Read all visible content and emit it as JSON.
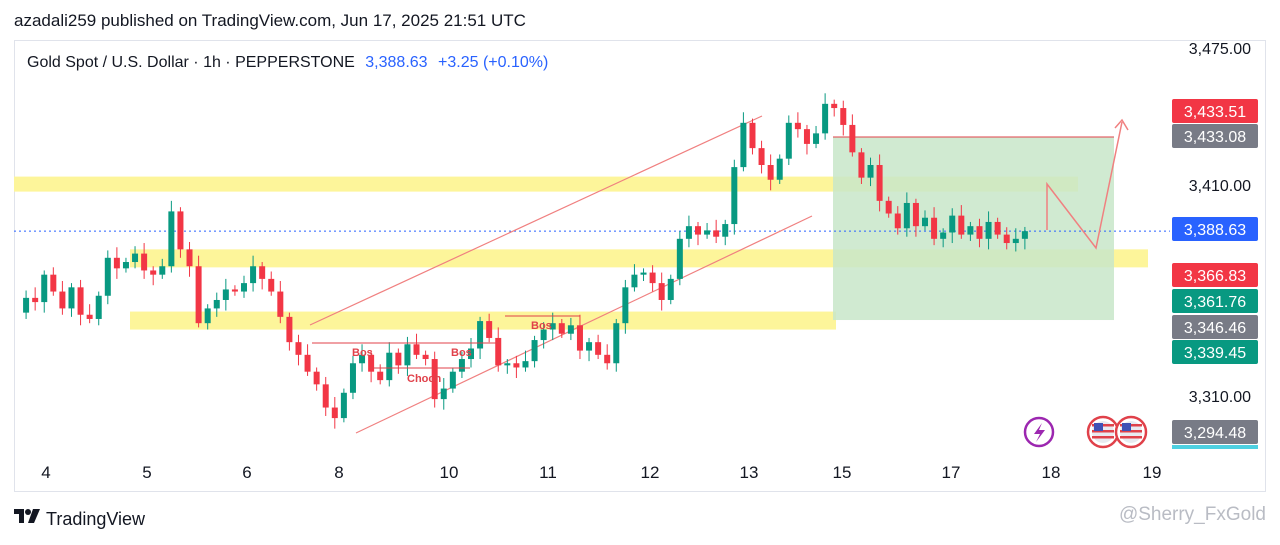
{
  "byline": "azadali259 published on TradingView.com, Jun 17, 2025 21:51 UTC",
  "legend": {
    "symbol": "Gold Spot / U.S. Dollar · 1h · PEPPERSTONE",
    "price": "3,388.63",
    "change": "+3.25 (+0.10%)"
  },
  "footer": {
    "brand": "TradingView",
    "watermark": "@Sherry_FxGold"
  },
  "colors": {
    "up": "#089981",
    "down": "#f23645",
    "zone": "#fdf59a",
    "target": "#c8e6c9",
    "trend": "#f08080",
    "current": "#2962ff"
  },
  "icons": [
    "tradingview-logo-icon",
    "lightning-icon",
    "us-flag-icon"
  ],
  "chart_data": {
    "type": "candlestick",
    "title": "Gold Spot / U.S. Dollar · 1h · PEPPERSTONE",
    "ylim": [
      3285,
      3480
    ],
    "y_ticks": [
      "3,475.00",
      "3,410.00",
      "3,310.00"
    ],
    "x_ticks": [
      "4",
      "5",
      "6",
      "8",
      "10",
      "11",
      "12",
      "13",
      "15",
      "17",
      "18",
      "19"
    ],
    "price_tags": [
      {
        "value": 3433.51,
        "text": "3,433.51",
        "color": "#f23645"
      },
      {
        "value": 3433.08,
        "text": "3,433.08",
        "color": "#787b86"
      },
      {
        "value": 3388.63,
        "text": "3,388.63",
        "color": "#2962ff"
      },
      {
        "value": 3366.83,
        "text": "3,366.83",
        "color": "#f23645"
      },
      {
        "value": 3361.76,
        "text": "3,361.76",
        "color": "#089981"
      },
      {
        "value": 3346.46,
        "text": "3,346.46",
        "color": "#787b86"
      },
      {
        "value": 3339.45,
        "text": "3,339.45",
        "color": "#089981"
      },
      {
        "value": 3294.48,
        "text": "3,294.48",
        "color": "#787b86"
      }
    ],
    "annotations": [
      "Bos",
      "Bos",
      "Choch",
      "Bos"
    ],
    "close_path": [
      [
        0,
        3350
      ],
      [
        1,
        3357
      ],
      [
        2,
        3355
      ],
      [
        3,
        3368
      ],
      [
        4,
        3360
      ],
      [
        5,
        3352
      ],
      [
        6,
        3362
      ],
      [
        7,
        3349
      ],
      [
        8,
        3347
      ],
      [
        9,
        3358
      ],
      [
        10,
        3376
      ],
      [
        11,
        3371
      ],
      [
        12,
        3374
      ],
      [
        13,
        3378
      ],
      [
        14,
        3370
      ],
      [
        15,
        3368
      ],
      [
        16,
        3372
      ],
      [
        17,
        3398
      ],
      [
        18,
        3380
      ],
      [
        19,
        3372
      ],
      [
        20,
        3345
      ],
      [
        21,
        3352
      ],
      [
        22,
        3356
      ],
      [
        23,
        3361
      ],
      [
        24,
        3360
      ],
      [
        25,
        3364
      ],
      [
        26,
        3372
      ],
      [
        27,
        3366
      ],
      [
        28,
        3360
      ],
      [
        29,
        3348
      ],
      [
        30,
        3336
      ],
      [
        31,
        3330
      ],
      [
        32,
        3322
      ],
      [
        33,
        3316
      ],
      [
        34,
        3305
      ],
      [
        35,
        3300
      ],
      [
        36,
        3312
      ],
      [
        37,
        3326
      ],
      [
        38,
        3330
      ],
      [
        39,
        3322
      ],
      [
        40,
        3318
      ],
      [
        41,
        3331
      ],
      [
        42,
        3325
      ],
      [
        43,
        3335
      ],
      [
        44,
        3330
      ],
      [
        45,
        3328
      ],
      [
        46,
        3309
      ],
      [
        47,
        3314
      ],
      [
        48,
        3322
      ],
      [
        49,
        3328
      ],
      [
        50,
        3333
      ],
      [
        51,
        3346
      ],
      [
        52,
        3338
      ],
      [
        53,
        3325
      ],
      [
        54,
        3326
      ],
      [
        55,
        3324
      ],
      [
        56,
        3327
      ],
      [
        57,
        3337
      ],
      [
        58,
        3342
      ],
      [
        59,
        3345
      ],
      [
        60,
        3340
      ],
      [
        61,
        3344
      ],
      [
        62,
        3332
      ],
      [
        63,
        3336
      ],
      [
        64,
        3330
      ],
      [
        65,
        3326
      ],
      [
        66,
        3345
      ],
      [
        67,
        3362
      ],
      [
        68,
        3368
      ],
      [
        69,
        3369
      ],
      [
        70,
        3364
      ],
      [
        71,
        3356
      ],
      [
        72,
        3366
      ],
      [
        73,
        3385
      ],
      [
        74,
        3391
      ],
      [
        75,
        3387
      ],
      [
        76,
        3389
      ],
      [
        77,
        3386
      ],
      [
        78,
        3392
      ],
      [
        79,
        3419
      ],
      [
        80,
        3440
      ],
      [
        81,
        3428
      ],
      [
        82,
        3420
      ],
      [
        83,
        3413
      ],
      [
        84,
        3423
      ],
      [
        85,
        3440
      ],
      [
        86,
        3437
      ],
      [
        87,
        3430
      ],
      [
        88,
        3435
      ],
      [
        89,
        3449
      ],
      [
        90,
        3447
      ],
      [
        91,
        3439
      ],
      [
        92,
        3426
      ],
      [
        93,
        3414
      ],
      [
        94,
        3420
      ],
      [
        95,
        3403
      ],
      [
        96,
        3397
      ],
      [
        97,
        3390
      ],
      [
        98,
        3402
      ],
      [
        99,
        3391
      ],
      [
        100,
        3395
      ],
      [
        101,
        3385
      ],
      [
        102,
        3388
      ],
      [
        103,
        3396
      ],
      [
        104,
        3387
      ],
      [
        105,
        3391
      ],
      [
        106,
        3385
      ],
      [
        107,
        3393
      ],
      [
        108,
        3387
      ],
      [
        109,
        3383
      ],
      [
        110,
        3385
      ],
      [
        111,
        3388.63
      ]
    ]
  }
}
